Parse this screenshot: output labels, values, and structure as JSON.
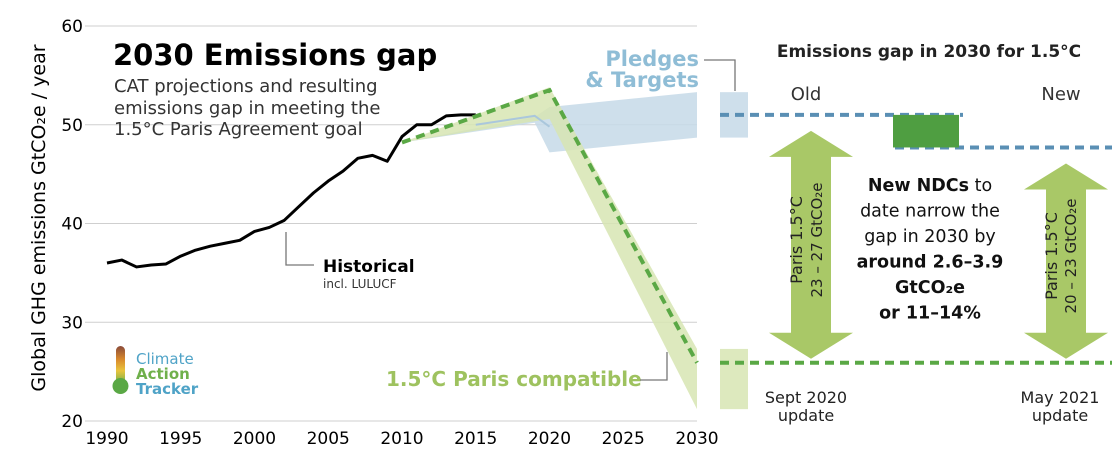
{
  "chart_data": {
    "type": "line",
    "title": "2030 Emissions gap",
    "subtitle_lines": [
      "CAT projections and resulting",
      "emissions gap in meeting the",
      "1.5°C Paris Agreement goal"
    ],
    "ylabel": "Global GHG  emissions  GtCO₂e / year",
    "ylim": [
      20,
      60
    ],
    "xlim": [
      1990,
      2030
    ],
    "x_ticks": [
      1990,
      1995,
      2000,
      2005,
      2010,
      2015,
      2020,
      2025,
      2030
    ],
    "y_ticks": [
      20,
      30,
      40,
      50,
      60
    ],
    "grid": true,
    "series": [
      {
        "name": "Historical",
        "sub_label": "incl. LULUCF",
        "color": "#000000",
        "x": [
          1990,
          1991,
          1992,
          1993,
          1994,
          1995,
          1996,
          1997,
          1998,
          1999,
          2000,
          2001,
          2002,
          2003,
          2004,
          2005,
          2006,
          2007,
          2008,
          2009,
          2010,
          2011,
          2012,
          2013,
          2014,
          2015
        ],
        "y": [
          36.0,
          36.3,
          35.6,
          35.8,
          35.9,
          36.7,
          37.3,
          37.7,
          38.0,
          38.3,
          39.2,
          39.6,
          40.3,
          41.7,
          43.1,
          44.3,
          45.3,
          46.6,
          46.9,
          46.3,
          48.8,
          50.0,
          50.0,
          50.9,
          51.0,
          51.0
        ]
      },
      {
        "name": "Pledges & Targets",
        "type": "band",
        "color": "#c5d9e8",
        "x": [
          2010,
          2019,
          2020,
          2030
        ],
        "upper": [
          48.2,
          50.8,
          51.8,
          53.3
        ],
        "lower": [
          48.2,
          50.2,
          47.2,
          48.7
        ]
      },
      {
        "name": "1.5°C Paris compatible",
        "type": "band",
        "color": "#d7e5b3",
        "x": [
          2010,
          2020,
          2030
        ],
        "upper": [
          48.2,
          53.8,
          27.3
        ],
        "lower": [
          48.2,
          50.6,
          21.2
        ]
      },
      {
        "name": "1.5°C Paris compatible (central)",
        "type": "dashed",
        "color": "#5aa845",
        "x": [
          2010,
          2020,
          2030
        ],
        "y": [
          48.2,
          53.5,
          25.9
        ]
      },
      {
        "name": "Pledges (central)",
        "type": "line",
        "color": "#aac7dc",
        "x": [
          2015,
          2019,
          2020
        ],
        "y": [
          50.0,
          50.9,
          49.8
        ]
      }
    ],
    "gap_panel": {
      "title": "Emissions gap in 2030 for 1.5°C",
      "old": {
        "label": "Old",
        "pledge_level": 51.0,
        "paris_level": 25.9,
        "arrow_line1": "Paris 1.5°C",
        "arrow_line2": "23 – 27 GtCO₂e",
        "update_line1": "Sept 2020",
        "update_line2": "update"
      },
      "new": {
        "label": "New",
        "pledge_level": 47.7,
        "paris_level": 25.9,
        "arrow_line1": "Paris 1.5°C",
        "arrow_line2": "20 – 23 GtCO₂e",
        "update_line1": "May 2021",
        "update_line2": "update"
      },
      "narrowing": {
        "from": 51.0,
        "to": 47.7,
        "color": "#4f9e41"
      },
      "message_lines": [
        [
          {
            "t": "New NDCs",
            "b": true
          },
          {
            "t": " to",
            "b": false
          }
        ],
        [
          {
            "t": "date narrow the",
            "b": false
          }
        ],
        [
          {
            "t": "gap in 2030 by",
            "b": false
          }
        ],
        [
          {
            "t": "around 2.6–3.9",
            "b": true
          }
        ],
        [
          {
            "t": "GtCO₂e",
            "b": true
          }
        ],
        [
          {
            "t": "or 11–14%",
            "b": true
          }
        ]
      ]
    },
    "annotations": {
      "pledges_line1": "Pledges",
      "pledges_line2": "& Targets",
      "paris_label": "1.5°C Paris compatible",
      "historical_label": "Historical",
      "historical_sub": "incl. LULUCF"
    }
  },
  "logo": {
    "line1": "Climate",
    "line2": "Action",
    "line3": "Tracker"
  },
  "colors": {
    "pledges_text": "#8fbdd6",
    "pledges_dashed": "#5a8fb4",
    "paris_text": "#9ec25f",
    "paris_dashed": "#5aa845",
    "gap_arrow": "#a9c867",
    "grid": "#cfcfcf"
  }
}
